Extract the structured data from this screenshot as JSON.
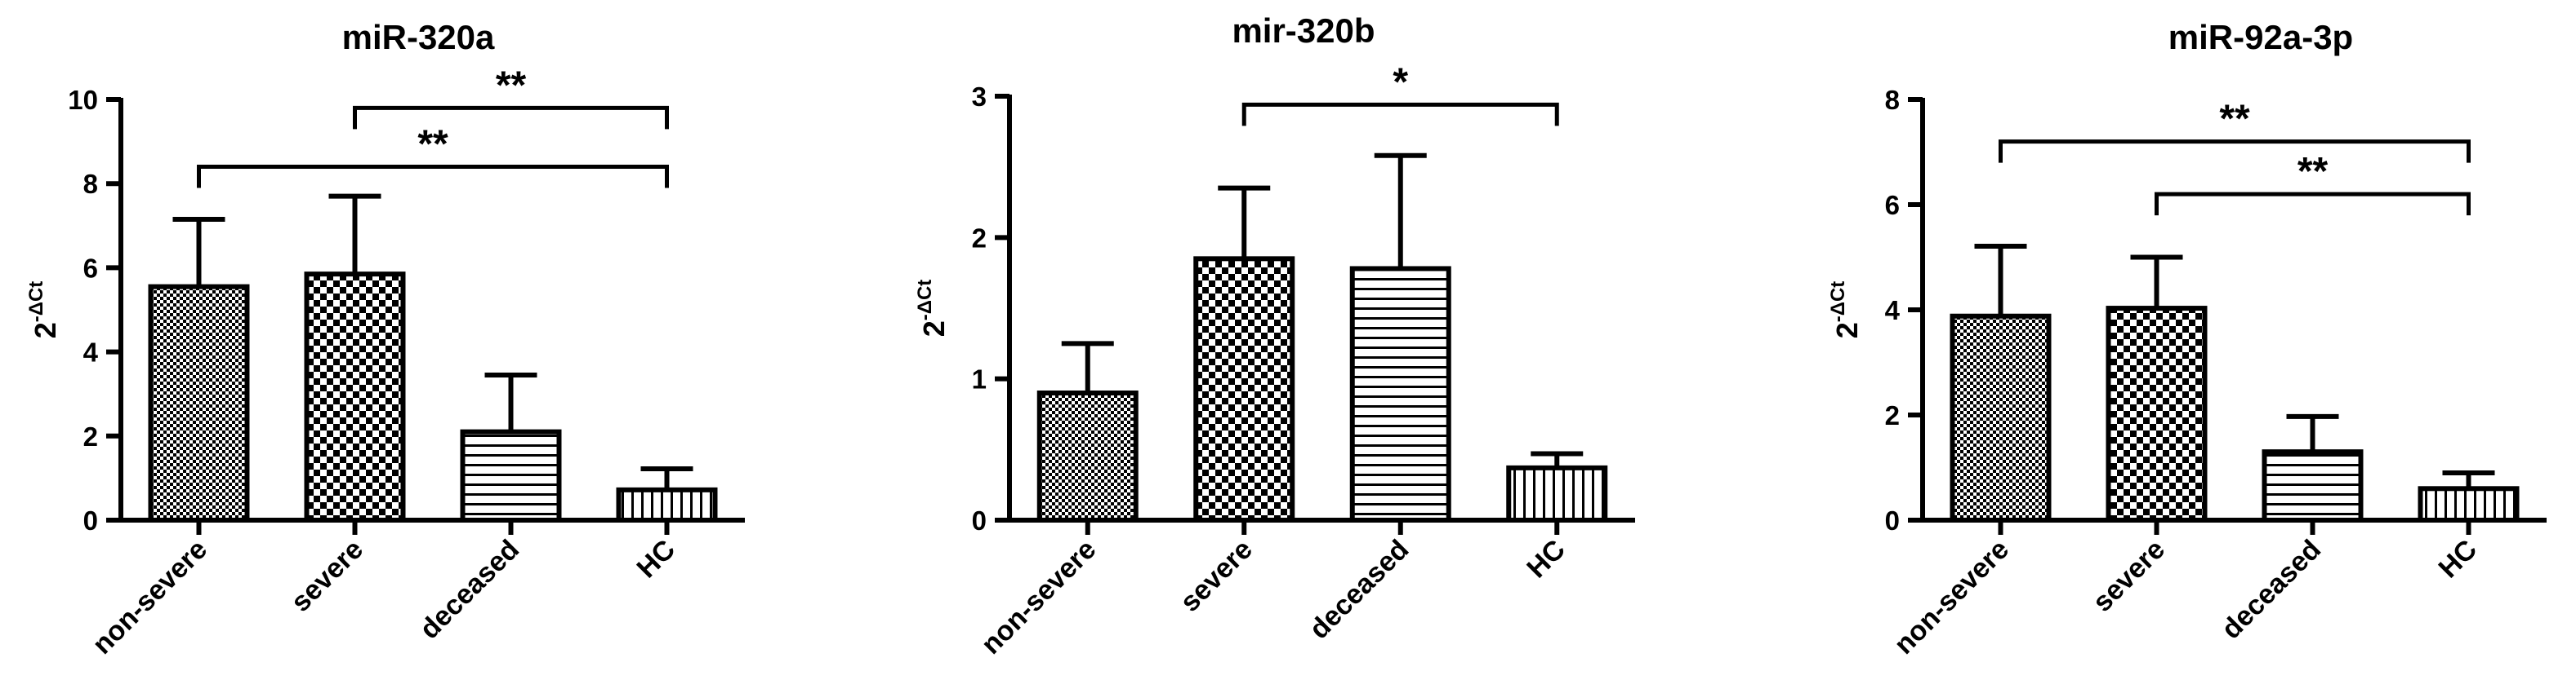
{
  "chart_data": [
    {
      "type": "bar",
      "title": "miR-320a",
      "ylabel": "2",
      "ylabel_sup": "-ΔCt",
      "categories": [
        "non-severe",
        "severe",
        "deceased",
        "HC"
      ],
      "values": [
        5.55,
        5.85,
        2.1,
        0.72
      ],
      "errors": [
        1.6,
        1.85,
        1.35,
        0.5
      ],
      "patterns": [
        "fine-check",
        "coarse-check",
        "horizontal",
        "vertical"
      ],
      "ylim": [
        0,
        10
      ],
      "yticks": [
        "0",
        "2",
        "4",
        "6",
        "8",
        "10"
      ],
      "significance": [
        {
          "from": 1,
          "to": 3,
          "y": 9.8,
          "label": "**"
        },
        {
          "from": 0,
          "to": 3,
          "y": 8.4,
          "label": "**"
        }
      ]
    },
    {
      "type": "bar",
      "title": "mir-320b",
      "ylabel": "2",
      "ylabel_sup": "-ΔCt",
      "categories": [
        "non-severe",
        "severe",
        "deceased",
        "HC"
      ],
      "values": [
        0.9,
        1.85,
        1.78,
        0.37
      ],
      "errors": [
        0.35,
        0.5,
        0.8,
        0.1
      ],
      "patterns": [
        "fine-check",
        "coarse-check",
        "horizontal",
        "vertical"
      ],
      "ylim": [
        0,
        3
      ],
      "yticks": [
        "0",
        "1",
        "2",
        "3"
      ],
      "significance": [
        {
          "from": 1,
          "to": 3,
          "y": 2.94,
          "label": "*"
        }
      ]
    },
    {
      "type": "bar",
      "title": "miR-92a-3p",
      "ylabel": "2",
      "ylabel_sup": "-ΔCt",
      "categories": [
        "non-severe",
        "severe",
        "deceased",
        "HC"
      ],
      "values": [
        3.88,
        4.03,
        1.3,
        0.6
      ],
      "errors": [
        1.33,
        0.97,
        0.67,
        0.3
      ],
      "patterns": [
        "fine-check",
        "coarse-check",
        "horizontal",
        "vertical"
      ],
      "ylim": [
        0,
        8
      ],
      "yticks": [
        "0",
        "2",
        "4",
        "6",
        "8"
      ],
      "significance": [
        {
          "from": 0,
          "to": 3,
          "y": 7.2,
          "label": "**"
        },
        {
          "from": 1,
          "to": 3,
          "y": 6.2,
          "label": "**"
        }
      ]
    }
  ]
}
